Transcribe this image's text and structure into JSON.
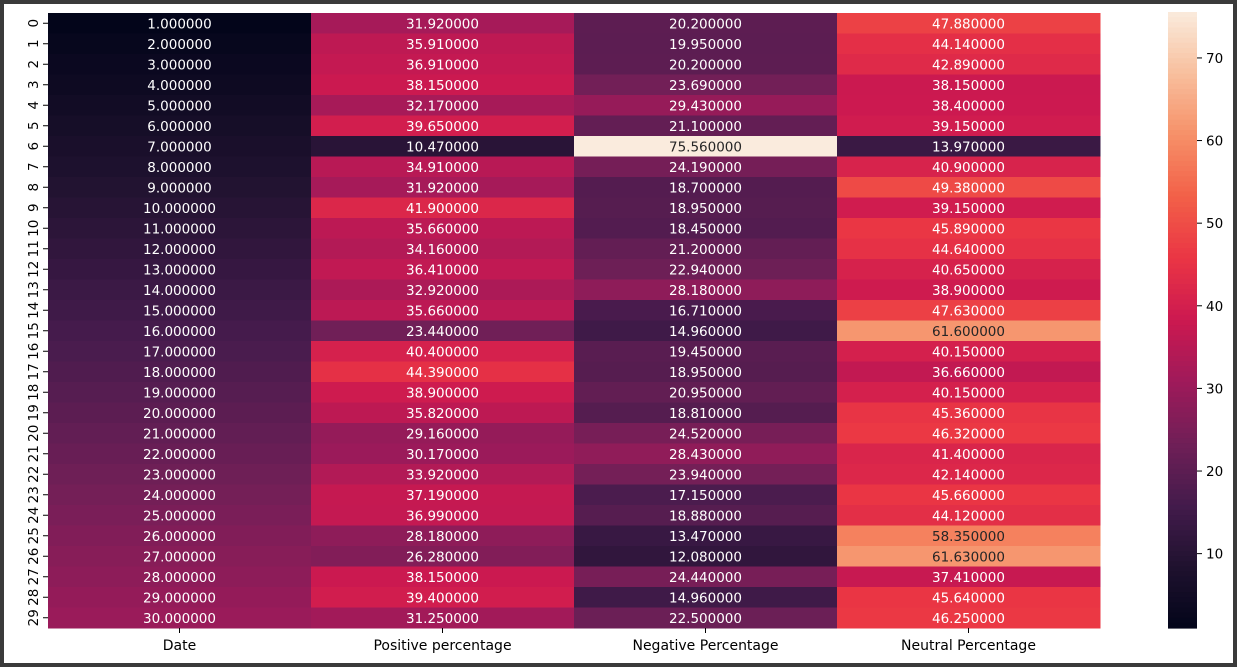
{
  "chart_data": {
    "type": "heatmap",
    "title": "",
    "xlabel": "",
    "ylabel": "",
    "columns": [
      "Date",
      "Positive percentage",
      "Negative Percentage",
      "Neutral Percentage"
    ],
    "row_labels": [
      "0",
      "1",
      "2",
      "3",
      "4",
      "5",
      "6",
      "7",
      "8",
      "9",
      "10",
      "11",
      "12",
      "13",
      "14",
      "15",
      "16",
      "17",
      "18",
      "19",
      "20",
      "21",
      "22",
      "23",
      "24",
      "25",
      "26",
      "27",
      "28",
      "29"
    ],
    "value_format": "%.6f",
    "values": [
      [
        1,
        31.92,
        20.2,
        47.88
      ],
      [
        2,
        35.91,
        19.95,
        44.14
      ],
      [
        3,
        36.91,
        20.2,
        42.89
      ],
      [
        4,
        38.15,
        23.69,
        38.15
      ],
      [
        5,
        32.17,
        29.43,
        38.4
      ],
      [
        6,
        39.65,
        21.1,
        39.15
      ],
      [
        7,
        10.47,
        75.56,
        13.97
      ],
      [
        8,
        34.91,
        24.19,
        40.9
      ],
      [
        9,
        31.92,
        18.7,
        49.38
      ],
      [
        10,
        41.9,
        18.95,
        39.15
      ],
      [
        11,
        35.66,
        18.45,
        45.89
      ],
      [
        12,
        34.16,
        21.2,
        44.64
      ],
      [
        13,
        36.41,
        22.94,
        40.65
      ],
      [
        14,
        32.92,
        28.18,
        38.9
      ],
      [
        15,
        35.66,
        16.71,
        47.63
      ],
      [
        16,
        23.44,
        14.96,
        61.6
      ],
      [
        17,
        40.4,
        19.45,
        40.15
      ],
      [
        18,
        44.39,
        18.95,
        36.66
      ],
      [
        19,
        38.9,
        20.95,
        40.15
      ],
      [
        20,
        35.82,
        18.81,
        45.36
      ],
      [
        21,
        29.16,
        24.52,
        46.32
      ],
      [
        22,
        30.17,
        28.43,
        41.4
      ],
      [
        23,
        33.92,
        23.94,
        42.14
      ],
      [
        24,
        37.19,
        17.15,
        45.66
      ],
      [
        25,
        36.99,
        18.88,
        44.12
      ],
      [
        26,
        28.18,
        13.47,
        58.35
      ],
      [
        27,
        26.28,
        12.08,
        61.63
      ],
      [
        28,
        38.15,
        24.44,
        37.41
      ],
      [
        29,
        39.4,
        14.96,
        45.64
      ],
      [
        30,
        31.25,
        22.5,
        46.25
      ]
    ],
    "colormap": "rocket",
    "vmin": 1.0,
    "vmax": 75.56,
    "colorbar_ticks": [
      10,
      20,
      30,
      40,
      50,
      60,
      70
    ],
    "grid": false,
    "legend": "colorbar-right"
  }
}
